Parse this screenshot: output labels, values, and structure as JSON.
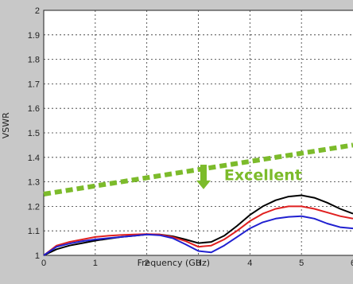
{
  "chart_data": {
    "type": "line",
    "xlabel": "Frequency (GHz)",
    "ylabel": "VSWR",
    "xlim": [
      0,
      6
    ],
    "ylim": [
      1,
      2
    ],
    "x_ticks": [
      "0",
      "1",
      "2",
      "3",
      "4",
      "5",
      "6"
    ],
    "y_ticks": [
      "1",
      "1.1",
      "1.2",
      "1.3",
      "1.4",
      "1.5",
      "1.6",
      "1.7",
      "1.8",
      "1.9",
      "2"
    ],
    "grid": true,
    "plot_background": "#ffffff",
    "series": [
      {
        "color": "#000000",
        "x": [
          0,
          0.25,
          0.5,
          0.75,
          1,
          1.25,
          1.5,
          1.75,
          2,
          2.25,
          2.5,
          2.75,
          3,
          3.25,
          3.5,
          3.75,
          4,
          4.25,
          4.5,
          4.75,
          5,
          5.25,
          5.5,
          5.75,
          6
        ],
        "values": [
          1.0,
          1.025,
          1.04,
          1.05,
          1.06,
          1.068,
          1.075,
          1.08,
          1.085,
          1.085,
          1.078,
          1.065,
          1.05,
          1.055,
          1.08,
          1.12,
          1.165,
          1.2,
          1.225,
          1.24,
          1.245,
          1.235,
          1.215,
          1.19,
          1.17
        ]
      },
      {
        "color": "#e02020",
        "x": [
          0,
          0.25,
          0.5,
          0.75,
          1,
          1.25,
          1.5,
          1.75,
          2,
          2.25,
          2.5,
          2.75,
          3,
          3.25,
          3.5,
          3.75,
          4,
          4.25,
          4.5,
          4.75,
          5,
          5.25,
          5.5,
          5.75,
          6
        ],
        "values": [
          1.0,
          1.04,
          1.055,
          1.065,
          1.075,
          1.08,
          1.083,
          1.085,
          1.087,
          1.085,
          1.075,
          1.058,
          1.035,
          1.04,
          1.065,
          1.1,
          1.14,
          1.17,
          1.19,
          1.2,
          1.2,
          1.19,
          1.175,
          1.16,
          1.15
        ]
      },
      {
        "color": "#2020d0",
        "x": [
          0,
          0.25,
          0.5,
          0.75,
          1,
          1.25,
          1.5,
          1.75,
          2,
          2.25,
          2.5,
          2.75,
          3,
          3.25,
          3.5,
          3.75,
          4,
          4.25,
          4.5,
          4.75,
          5,
          5.25,
          5.5,
          5.75,
          6
        ],
        "values": [
          1.0,
          1.035,
          1.048,
          1.058,
          1.065,
          1.07,
          1.075,
          1.08,
          1.085,
          1.082,
          1.07,
          1.045,
          1.018,
          1.012,
          1.04,
          1.075,
          1.11,
          1.135,
          1.15,
          1.157,
          1.16,
          1.15,
          1.13,
          1.115,
          1.11
        ]
      }
    ],
    "annotations": [
      {
        "text": "Excellent",
        "color": "#7cbb2b",
        "x": 3.5,
        "y": 1.3
      }
    ],
    "threshold_line": {
      "color": "#7cbb2b",
      "style": "dashed",
      "x": [
        0,
        6
      ],
      "y": [
        1.25,
        1.45
      ]
    },
    "arrow": {
      "color": "#7cbb2b",
      "direction": "down",
      "x": 3.1,
      "y_from": 1.37,
      "y_to": 1.27
    }
  }
}
